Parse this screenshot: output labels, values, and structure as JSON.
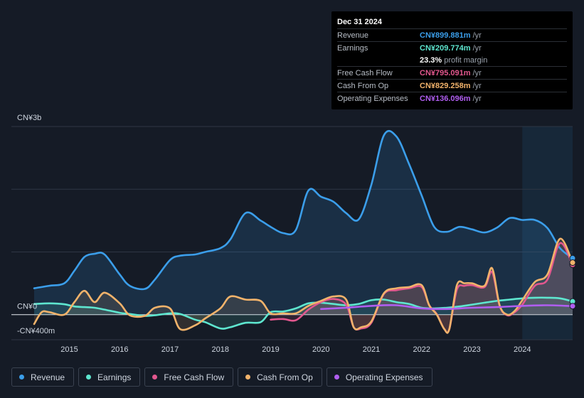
{
  "tooltip": {
    "date": "Dec 31 2024",
    "rows": [
      {
        "label": "Revenue",
        "value": "CN¥899.881m",
        "unit": "/yr",
        "color": "#3b9eea"
      },
      {
        "label": "Earnings",
        "value": "CN¥209.774m",
        "unit": "/yr",
        "color": "#5ee6cf"
      },
      {
        "label": "",
        "value": "23.3%",
        "unit": "profit margin",
        "color": "#ffffff"
      },
      {
        "label": "Free Cash Flow",
        "value": "CN¥795.091m",
        "unit": "/yr",
        "color": "#e2578e"
      },
      {
        "label": "Cash From Op",
        "value": "CN¥829.258m",
        "unit": "/yr",
        "color": "#f2b36b"
      },
      {
        "label": "Operating Expenses",
        "value": "CN¥136.096m",
        "unit": "/yr",
        "color": "#b05ef0"
      }
    ]
  },
  "legend": [
    {
      "name": "revenue",
      "label": "Revenue",
      "color": "#3b9eea"
    },
    {
      "name": "earnings",
      "label": "Earnings",
      "color": "#5ee6cf"
    },
    {
      "name": "free-cash-flow",
      "label": "Free Cash Flow",
      "color": "#e2578e"
    },
    {
      "name": "cash-from-op",
      "label": "Cash From Op",
      "color": "#f2b36b"
    },
    {
      "name": "operating-expenses",
      "label": "Operating Expenses",
      "color": "#b05ef0"
    }
  ],
  "chart_data": {
    "type": "line",
    "title": "",
    "ylabel": "",
    "xlabel": "",
    "ylim": [
      -400,
      3000
    ],
    "y_tick_labels": [
      {
        "value": 3000,
        "label": "CN¥3b"
      },
      {
        "value": 0,
        "label": "CN¥0"
      },
      {
        "value": -400,
        "label": "-CN¥400m"
      }
    ],
    "y_gridlines": [
      3000,
      2000,
      1000,
      0
    ],
    "x_range": [
      2014.3,
      2025.0
    ],
    "x_ticks": [
      {
        "value": 2015,
        "label": "2015"
      },
      {
        "value": 2016,
        "label": "2016"
      },
      {
        "value": 2017,
        "label": "2017"
      },
      {
        "value": 2018,
        "label": "2018"
      },
      {
        "value": 2019,
        "label": "2019"
      },
      {
        "value": 2020,
        "label": "2020"
      },
      {
        "value": 2021,
        "label": "2021"
      },
      {
        "value": 2022,
        "label": "2022"
      },
      {
        "value": 2023,
        "label": "2023"
      },
      {
        "value": 2024,
        "label": "2024"
      }
    ],
    "highlight_start": 2024.0,
    "series": [
      {
        "name": "Revenue",
        "key": "revenue",
        "color": "#3b9eea",
        "fill": true,
        "x": [
          2014.3,
          2014.6,
          2014.9,
          2015.1,
          2015.3,
          2015.5,
          2015.7,
          2016.0,
          2016.2,
          2016.5,
          2016.7,
          2017.0,
          2017.2,
          2017.5,
          2017.7,
          2018.0,
          2018.2,
          2018.5,
          2018.8,
          2019.0,
          2019.25,
          2019.5,
          2019.75,
          2020.0,
          2020.25,
          2020.5,
          2020.75,
          2021.0,
          2021.25,
          2021.5,
          2021.75,
          2022.0,
          2022.25,
          2022.5,
          2022.75,
          2023.0,
          2023.25,
          2023.5,
          2023.75,
          2024.0,
          2024.25,
          2024.5,
          2024.75,
          2025.0
        ],
        "values": [
          420,
          460,
          500,
          700,
          920,
          970,
          960,
          640,
          460,
          410,
          560,
          870,
          940,
          960,
          1000,
          1060,
          1200,
          1620,
          1500,
          1400,
          1300,
          1350,
          1980,
          1880,
          1800,
          1620,
          1520,
          2070,
          2860,
          2840,
          2400,
          1900,
          1400,
          1320,
          1400,
          1360,
          1310,
          1390,
          1540,
          1510,
          1510,
          1380,
          1060,
          900
        ]
      },
      {
        "name": "Earnings",
        "key": "earnings",
        "color": "#5ee6cf",
        "fill": true,
        "x": [
          2014.3,
          2014.6,
          2014.9,
          2015.1,
          2015.3,
          2015.5,
          2015.7,
          2016.0,
          2016.2,
          2016.5,
          2016.7,
          2017.0,
          2017.2,
          2017.5,
          2017.7,
          2018.0,
          2018.2,
          2018.5,
          2018.8,
          2019.0,
          2019.25,
          2019.5,
          2019.75,
          2020.0,
          2020.25,
          2020.5,
          2020.75,
          2021.0,
          2021.25,
          2021.5,
          2021.75,
          2022.0,
          2022.25,
          2022.5,
          2022.75,
          2023.0,
          2023.25,
          2023.5,
          2023.75,
          2024.0,
          2024.25,
          2024.5,
          2024.75,
          2025.0
        ],
        "values": [
          170,
          180,
          165,
          130,
          120,
          110,
          80,
          30,
          10,
          -20,
          -10,
          20,
          10,
          -80,
          -120,
          -220,
          -200,
          -130,
          -120,
          40,
          50,
          100,
          180,
          190,
          170,
          150,
          170,
          230,
          240,
          200,
          170,
          110,
          100,
          110,
          130,
          160,
          190,
          220,
          240,
          260,
          270,
          270,
          260,
          210
        ]
      },
      {
        "name": "Free Cash Flow",
        "key": "fcf",
        "color": "#e2578e",
        "fill": true,
        "x": [
          2019.0,
          2019.25,
          2019.5,
          2019.75,
          2020.0,
          2020.25,
          2020.5,
          2020.65,
          2020.8,
          2021.0,
          2021.25,
          2021.5,
          2021.75,
          2022.0,
          2022.15,
          2022.3,
          2022.45,
          2022.55,
          2022.7,
          2022.85,
          2023.0,
          2023.25,
          2023.4,
          2023.55,
          2023.7,
          2023.85,
          2024.0,
          2024.25,
          2024.5,
          2024.75,
          2025.0
        ],
        "values": [
          -80,
          -70,
          -90,
          80,
          200,
          250,
          160,
          -200,
          -220,
          -130,
          330,
          390,
          420,
          440,
          150,
          10,
          -230,
          -230,
          400,
          460,
          470,
          440,
          680,
          140,
          -10,
          40,
          160,
          460,
          560,
          1140,
          795
        ]
      },
      {
        "name": "Cash From Op",
        "key": "cfo",
        "color": "#f2b36b",
        "fill": true,
        "x": [
          2014.3,
          2014.45,
          2014.6,
          2014.9,
          2015.1,
          2015.3,
          2015.5,
          2015.7,
          2016.0,
          2016.2,
          2016.5,
          2016.7,
          2017.0,
          2017.2,
          2017.5,
          2017.7,
          2018.0,
          2018.2,
          2018.5,
          2018.8,
          2019.0,
          2019.25,
          2019.5,
          2019.75,
          2020.0,
          2020.25,
          2020.5,
          2020.65,
          2020.8,
          2021.0,
          2021.25,
          2021.5,
          2021.75,
          2022.0,
          2022.15,
          2022.3,
          2022.45,
          2022.55,
          2022.7,
          2022.85,
          2023.0,
          2023.25,
          2023.4,
          2023.55,
          2023.7,
          2023.85,
          2024.0,
          2024.25,
          2024.5,
          2024.75,
          2025.0
        ],
        "values": [
          -150,
          40,
          40,
          0,
          200,
          380,
          200,
          350,
          180,
          -10,
          -20,
          110,
          100,
          -230,
          -170,
          -60,
          100,
          290,
          240,
          220,
          20,
          20,
          20,
          140,
          220,
          290,
          240,
          -200,
          -200,
          -110,
          340,
          420,
          440,
          470,
          150,
          0,
          -230,
          -230,
          470,
          500,
          500,
          460,
          740,
          150,
          0,
          60,
          230,
          520,
          640,
          1210,
          829
        ]
      },
      {
        "name": "Operating Expenses",
        "key": "opex",
        "color": "#b05ef0",
        "fill": false,
        "x": [
          2020.0,
          2020.5,
          2021.0,
          2021.5,
          2022.0,
          2022.5,
          2023.0,
          2023.5,
          2024.0,
          2024.5,
          2025.0
        ],
        "values": [
          90,
          110,
          140,
          150,
          100,
          90,
          110,
          120,
          140,
          150,
          136
        ]
      }
    ]
  }
}
